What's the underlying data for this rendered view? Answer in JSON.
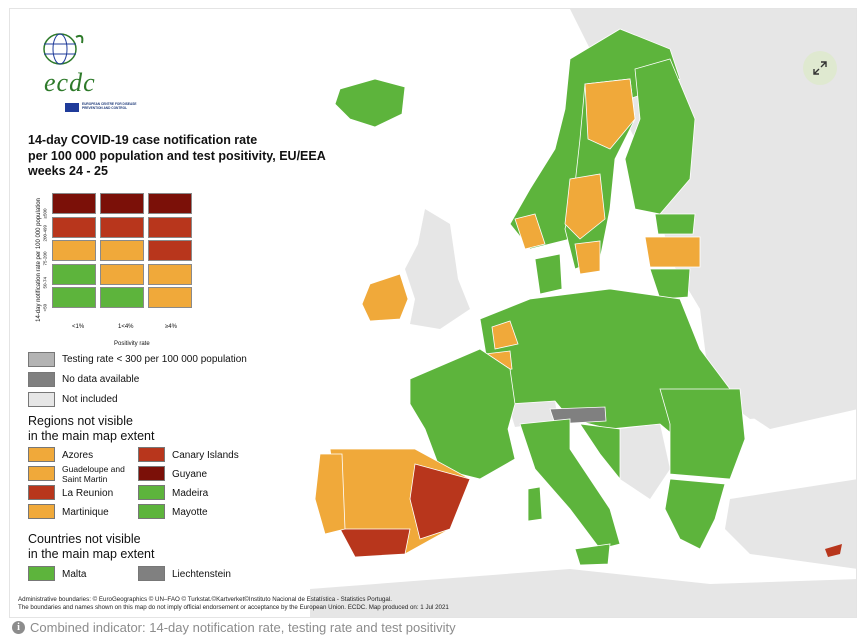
{
  "map": {
    "title_lines": [
      "14-day COVID-19 case notification rate",
      "per 100 000 population and test positivity, EU/EEA",
      "weeks 24 - 25"
    ],
    "logo": {
      "text": "ecdc",
      "subtitle": "EUROPEAN CENTRE FOR DISEASE PREVENTION AND CONTROL"
    },
    "matrix": {
      "ylabel": "14-day notification rate per 100 000 population",
      "xlabel": "Positivity rate",
      "row_labels": [
        "≥500",
        "200-499",
        "75-200",
        "50-74",
        "<50"
      ],
      "col_labels": [
        "<1%",
        "1<4%",
        "≥4%"
      ],
      "colors": [
        [
          "#7b1008",
          "#7b1008",
          "#7b1008"
        ],
        [
          "#b8361c",
          "#b8361c",
          "#b8361c"
        ],
        [
          "#f0a93a",
          "#f0a93a",
          "#b8361c"
        ],
        [
          "#5db43c",
          "#f0a93a",
          "#f0a93a"
        ],
        [
          "#5db43c",
          "#5db43c",
          "#f0a93a"
        ]
      ]
    },
    "legend": {
      "items": [
        {
          "label": "Testing rate < 300 per 100 000 population",
          "color": "#b3b3b3"
        },
        {
          "label": "No data available",
          "color": "#808080"
        },
        {
          "label": "Not included",
          "color": "#e6e6e6"
        }
      ],
      "regions_heading": [
        "Regions not visible",
        "in the main map extent"
      ],
      "regions": [
        {
          "label": "Azores",
          "color": "#f0a93a"
        },
        {
          "label": "Canary Islands",
          "color": "#b8361c"
        },
        {
          "label": "Guadeloupe and Saint Martin",
          "color": "#f0a93a"
        },
        {
          "label": "Guyane",
          "color": "#7b1008"
        },
        {
          "label": "La Reunion",
          "color": "#b8361c"
        },
        {
          "label": "Madeira",
          "color": "#5db43c"
        },
        {
          "label": "Martinique",
          "color": "#f0a93a"
        },
        {
          "label": "Mayotte",
          "color": "#5db43c"
        }
      ],
      "countries_heading": [
        "Countries not visible",
        "in the main map extent"
      ],
      "countries": [
        {
          "label": "Malta",
          "color": "#5db43c"
        },
        {
          "label": "Liechtenstein",
          "color": "#808080"
        }
      ]
    },
    "footer_lines": [
      "Administrative boundaries: © EuroGeographics © UN–FAO © Turkstat.©Kartverket©Instituto Nacional de Estatística - Statistics Portugal.",
      "The boundaries and names shown on this map do not imply official endorsement or acceptance by the European Union. ECDC. Map produced on: 1 Jul 2021"
    ],
    "colors": {
      "green": "#5db43c",
      "orange": "#f0a93a",
      "red": "#b8361c",
      "dark_red": "#7b1008",
      "light_grey": "#b3b3b3",
      "dark_grey": "#808080",
      "not_included": "#e6e6e6",
      "sea": "#ffffff"
    }
  },
  "caption": {
    "icon": "info-icon",
    "text": "Combined indicator: 14-day notification rate, testing rate and test positivity"
  },
  "controls": {
    "expand_icon": "expand-icon"
  }
}
